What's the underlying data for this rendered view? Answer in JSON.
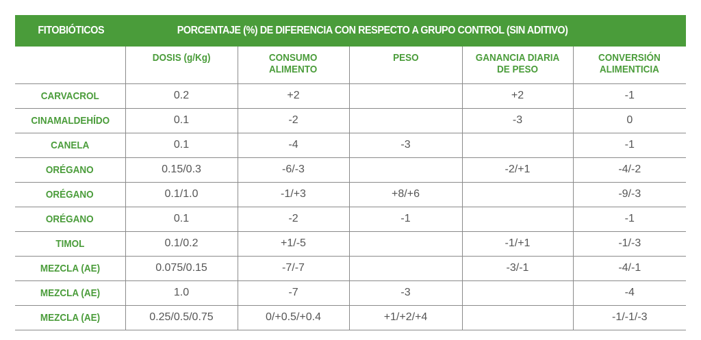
{
  "header": {
    "col0": "FITOBIÓTICOS",
    "span": "PORCENTAJE (%) DE DIFERENCIA CON RESPECTO A GRUPO CONTROL (SIN ADITIVO)"
  },
  "subheaders": {
    "dosis": "DOSIS (g/Kg)",
    "consumo_l1": "CONSUMO",
    "consumo_l2": "ALIMENTO",
    "peso": "PESO",
    "ganancia_l1": "GANANCIA DIARIA",
    "ganancia_l2": "DE PESO",
    "conversion_l1": "CONVERSIÓN",
    "conversion_l2": "ALIMENTICIA"
  },
  "rows": [
    {
      "name": "CARVACROL",
      "dosis": "0.2",
      "consumo": "+2",
      "peso": "",
      "ganancia": "+2",
      "conversion": "-1"
    },
    {
      "name": "CINAMALDEHÍDO",
      "dosis": "0.1",
      "consumo": "-2",
      "peso": "",
      "ganancia": "-3",
      "conversion": "0"
    },
    {
      "name": "CANELA",
      "dosis": "0.1",
      "consumo": "-4",
      "peso": "-3",
      "ganancia": "",
      "conversion": "-1"
    },
    {
      "name": "ORÉGANO",
      "dosis": "0.15/0.3",
      "consumo": "-6/-3",
      "peso": "",
      "ganancia": "-2/+1",
      "conversion": "-4/-2"
    },
    {
      "name": "ORÉGANO",
      "dosis": "0.1/1.0",
      "consumo": "-1/+3",
      "peso": "+8/+6",
      "ganancia": "",
      "conversion": "-9/-3"
    },
    {
      "name": "ORÉGANO",
      "dosis": "0.1",
      "consumo": "-2",
      "peso": "-1",
      "ganancia": "",
      "conversion": "-1"
    },
    {
      "name": "TIMOL",
      "dosis": "0.1/0.2",
      "consumo": "+1/-5",
      "peso": "",
      "ganancia": "-1/+1",
      "conversion": "-1/-3"
    },
    {
      "name": "MEZCLA (AE)",
      "dosis": "0.075/0.15",
      "consumo": "-7/-7",
      "peso": "",
      "ganancia": "-3/-1",
      "conversion": "-4/-1"
    },
    {
      "name": "MEZCLA (AE)",
      "dosis": "1.0",
      "consumo": "-7",
      "peso": "-3",
      "ganancia": "",
      "conversion": "-4"
    },
    {
      "name": "MEZCLA (AE)",
      "dosis": "0.25/0.5/0.75",
      "consumo": "0/+0.5/+0.4",
      "peso": "+1/+2/+4",
      "ganancia": "",
      "conversion": "-1/-1/-3"
    }
  ],
  "colors": {
    "accent": "#4a9c3a",
    "text": "#555555",
    "rule": "#8a8a8a"
  }
}
